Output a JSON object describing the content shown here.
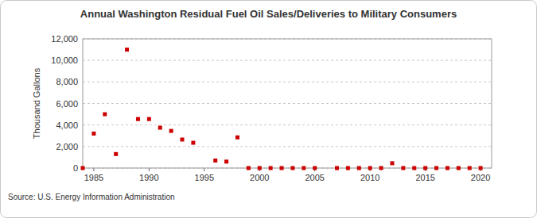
{
  "chart_data": {
    "type": "scatter",
    "title": "Annual Washington Residual Fuel Oil Sales/Deliveries to Military Consumers",
    "y_label": "Thousand Gallons",
    "source": "Source: U.S. Energy Information Administration",
    "x": [
      1984,
      1985,
      1986,
      1987,
      1988,
      1989,
      1990,
      1991,
      1992,
      1993,
      1994,
      1995,
      1996,
      1997,
      1998,
      1999,
      2000,
      2001,
      2002,
      2003,
      2004,
      2005,
      2006,
      2007,
      2008,
      2009,
      2010,
      2011,
      2012,
      2013,
      2014,
      2015,
      2016,
      2017,
      2018,
      2019,
      2020
    ],
    "values": [
      0,
      3200,
      5000,
      1300,
      11000,
      4550,
      4550,
      3750,
      3450,
      2650,
      2350,
      null,
      700,
      600,
      2850,
      0,
      0,
      0,
      0,
      0,
      0,
      0,
      null,
      0,
      0,
      0,
      0,
      0,
      450,
      0,
      0,
      0,
      0,
      0,
      0,
      0,
      0
    ],
    "color": "#cc0000",
    "marker": "square",
    "xlim": [
      1984,
      2021
    ],
    "xticks": [
      1985,
      1990,
      1995,
      2000,
      2005,
      2010,
      2015,
      2020
    ],
    "ylim": [
      0,
      12000
    ],
    "yticks": [
      0,
      {
        "value": 2000,
        "label": "2,000"
      },
      {
        "value": 4000,
        "label": "4,000"
      },
      {
        "value": 6000,
        "label": "6,000"
      },
      {
        "value": 8000,
        "label": "8,000"
      },
      {
        "value": 10000,
        "label": "10,000"
      },
      {
        "value": 12000,
        "label": "12,000"
      }
    ],
    "grid": true
  }
}
